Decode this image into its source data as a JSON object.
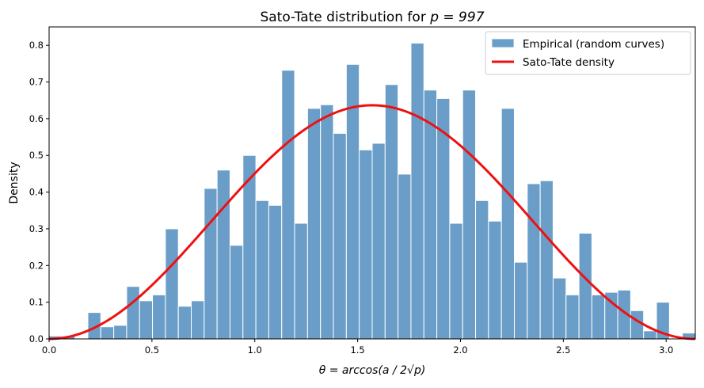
{
  "chart_data": {
    "type": "bar",
    "title_main": "Sato-Tate distribution for ",
    "title_math": "p = 997",
    "xlabel": "θ = arccos(a / 2√p)",
    "ylabel": "Density",
    "xlim": [
      0,
      3.14159
    ],
    "ylim": [
      0,
      0.85
    ],
    "xticks": [
      0.0,
      0.5,
      1.0,
      1.5,
      2.0,
      2.5,
      3.0
    ],
    "xtick_labels": [
      "0.0",
      "0.5",
      "1.0",
      "1.5",
      "2.0",
      "2.5",
      "3.0"
    ],
    "yticks": [
      0.0,
      0.1,
      0.2,
      0.3,
      0.4,
      0.5,
      0.6,
      0.7,
      0.8
    ],
    "ytick_labels": [
      "0.0",
      "0.1",
      "0.2",
      "0.3",
      "0.4",
      "0.5",
      "0.6",
      "0.7",
      "0.8"
    ],
    "grid": false,
    "legend_position": "top-right",
    "histogram": {
      "name": "Empirical (random curves)",
      "color": "#6a9ec8",
      "bin_start": 0.0,
      "bin_width": 0.06283,
      "values": [
        0.008,
        0.008,
        0.0,
        0.072,
        0.033,
        0.037,
        0.143,
        0.104,
        0.12,
        0.3,
        0.089,
        0.104,
        0.41,
        0.46,
        0.255,
        0.5,
        0.377,
        0.364,
        0.732,
        0.315,
        0.628,
        0.638,
        0.56,
        0.748,
        0.515,
        0.533,
        0.693,
        0.449,
        0.806,
        0.678,
        0.655,
        0.315,
        0.678,
        0.377,
        0.321,
        0.628,
        0.209,
        0.423,
        0.431,
        0.166,
        0.12,
        0.288,
        0.12,
        0.127,
        0.133,
        0.077,
        0.022,
        0.1,
        0.0,
        0.016
      ]
    },
    "curve": {
      "name": "Sato-Tate density",
      "color": "#ee1111",
      "formula": "(2/π)·sin²(θ)"
    }
  }
}
